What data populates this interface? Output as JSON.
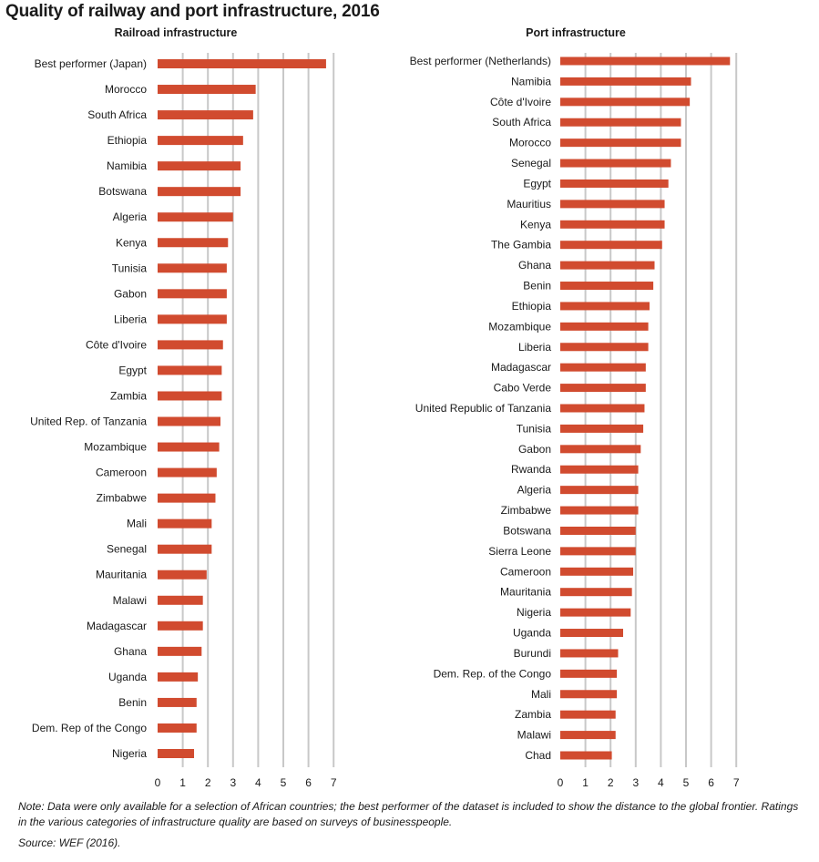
{
  "figure": {
    "title": "Quality of railway and port infrastructure, 2016",
    "note": "Note: Data were only available for a selection of African countries; the best performer of the dataset is included to show the distance to the global frontier. Ratings in the various categories of infrastructure quality are based on surveys of businesspeople.",
    "source": "Source: WEF (2016)."
  },
  "colors": {
    "bar": "#d14b2f",
    "grid": "#c8c8c8"
  },
  "chart_data": [
    {
      "type": "bar",
      "orientation": "horizontal",
      "title": "Railroad infrastructure",
      "xlim": [
        0,
        7
      ],
      "xticks": [
        "0",
        "1",
        "2",
        "3",
        "4",
        "5",
        "6",
        "7"
      ],
      "grid": true,
      "categories": [
        "Best performer (Japan)",
        "Morocco",
        "South Africa",
        "Ethiopia",
        "Namibia",
        "Botswana",
        "Algeria",
        "Kenya",
        "Tunisia",
        "Gabon",
        "Liberia",
        "Côte d'Ivoire",
        "Egypt",
        "Zambia",
        "United Rep. of Tanzania",
        "Mozambique",
        "Cameroon",
        "Zimbabwe",
        "Mali",
        "Senegal",
        "Mauritania",
        "Malawi",
        "Madagascar",
        "Ghana",
        "Uganda",
        "Benin",
        "Dem. Rep of the Congo",
        "Nigeria"
      ],
      "values": [
        6.7,
        3.9,
        3.8,
        3.4,
        3.3,
        3.3,
        3.0,
        2.8,
        2.75,
        2.75,
        2.75,
        2.6,
        2.55,
        2.55,
        2.5,
        2.45,
        2.35,
        2.3,
        2.15,
        2.15,
        1.95,
        1.8,
        1.8,
        1.75,
        1.6,
        1.55,
        1.55,
        1.45
      ]
    },
    {
      "type": "bar",
      "orientation": "horizontal",
      "title": "Port infrastructure",
      "xlim": [
        0,
        7
      ],
      "xticks": [
        "0",
        "1",
        "2",
        "3",
        "4",
        "5",
        "6",
        "7"
      ],
      "grid": true,
      "categories": [
        "Best performer (Netherlands)",
        "Namibia",
        "Côte d'Ivoire",
        "South Africa",
        "Morocco",
        "Senegal",
        "Egypt",
        "Mauritius",
        "Kenya",
        "The Gambia",
        "Ghana",
        "Benin",
        "Ethiopia",
        "Mozambique",
        "Liberia",
        "Madagascar",
        "Cabo Verde",
        "United Republic of Tanzania",
        "Tunisia",
        "Gabon",
        "Rwanda",
        "Algeria",
        "Zimbabwe",
        "Botswana",
        "Sierra Leone",
        "Cameroon",
        "Mauritania",
        "Nigeria",
        "Uganda",
        "Burundi",
        "Dem. Rep. of the Congo",
        "Mali",
        "Zambia",
        "Malawi",
        "Chad"
      ],
      "values": [
        6.75,
        5.2,
        5.15,
        4.8,
        4.8,
        4.4,
        4.3,
        4.15,
        4.15,
        4.05,
        3.75,
        3.7,
        3.55,
        3.5,
        3.5,
        3.4,
        3.4,
        3.35,
        3.3,
        3.2,
        3.1,
        3.1,
        3.1,
        3.0,
        3.0,
        2.9,
        2.85,
        2.8,
        2.5,
        2.3,
        2.25,
        2.25,
        2.2,
        2.2,
        2.05
      ]
    }
  ]
}
